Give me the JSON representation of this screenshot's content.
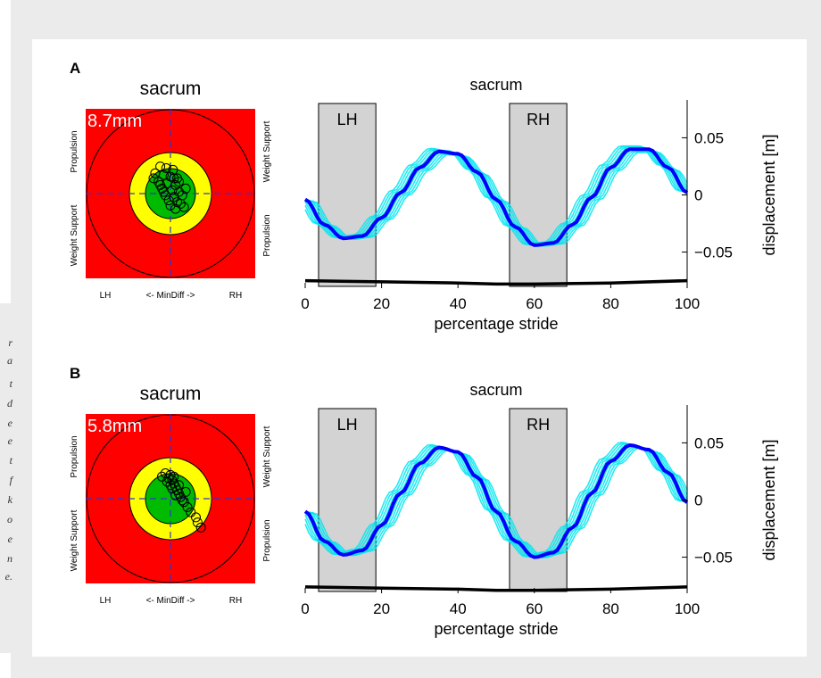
{
  "caption_fragments": [
    {
      "id": "r",
      "text": "r"
    },
    {
      "id": "a",
      "text": "a"
    },
    {
      "id": "t",
      "text": "t"
    },
    {
      "id": "d",
      "text": "d"
    },
    {
      "id": "e1",
      "text": "e"
    },
    {
      "id": "e2",
      "text": "e"
    },
    {
      "id": "t2",
      "text": "t"
    },
    {
      "id": "f",
      "text": "f"
    },
    {
      "id": "k",
      "text": "k"
    },
    {
      "id": "o",
      "text": "o"
    },
    {
      "id": "e3",
      "text": "e"
    },
    {
      "id": "n",
      "text": "n"
    },
    {
      "id": "e4",
      "text": "e."
    }
  ],
  "colors": {
    "target_outer": "#ff0000",
    "target_middle": "#ffff00",
    "target_inner": "#00bb00",
    "trial_line": "#00e5ee",
    "mean_line": "#0000ff",
    "phase_box": "#d3d3d3",
    "overlay_text": "#ffffff"
  },
  "chart_data": [
    {
      "panel": "A",
      "type": "scatter",
      "title": "sacrum",
      "value_label": "8.7mm",
      "xlabel": "<- MinDiff ->",
      "x_tick_labels": [
        "LH",
        "RH"
      ],
      "left_labels": [
        "Propulsion",
        "Weight Support"
      ],
      "right_labels": [
        "Weight Support",
        "Propulsion"
      ],
      "points": [
        [
          -0.12,
          0.32
        ],
        [
          -0.05,
          0.3
        ],
        [
          0.03,
          0.28
        ],
        [
          -0.18,
          0.24
        ],
        [
          -0.08,
          0.22
        ],
        [
          0.0,
          0.2
        ],
        [
          0.08,
          0.18
        ],
        [
          -0.14,
          0.14
        ],
        [
          -0.04,
          0.12
        ],
        [
          0.06,
          0.1
        ],
        [
          -0.1,
          0.06
        ],
        [
          0.02,
          0.04
        ],
        [
          0.1,
          0.02
        ],
        [
          -0.06,
          -0.02
        ],
        [
          0.04,
          -0.04
        ],
        [
          0.14,
          -0.02
        ],
        [
          -0.02,
          -0.08
        ],
        [
          0.08,
          -0.1
        ],
        [
          0.0,
          -0.14
        ],
        [
          0.12,
          -0.12
        ],
        [
          -0.08,
          0.02
        ],
        [
          0.04,
          0.18
        ],
        [
          -0.12,
          0.1
        ],
        [
          0.1,
          0.14
        ],
        [
          0.18,
          0.06
        ],
        [
          -0.2,
          0.18
        ],
        [
          0.06,
          -0.18
        ],
        [
          0.16,
          -0.16
        ]
      ]
    },
    {
      "panel": "A",
      "type": "line",
      "title": "sacrum",
      "xlabel": "percentage stride",
      "ylabel": "displacement [m]",
      "x_ticks": [
        0,
        20,
        40,
        60,
        80,
        100
      ],
      "y_ticks": [
        -0.05,
        0,
        0.05
      ],
      "xlim": [
        0,
        100
      ],
      "ylim": [
        -0.08,
        0.08
      ],
      "phase_boxes": [
        {
          "label": "LH",
          "start": 3.5,
          "end": 18.5
        },
        {
          "label": "RH",
          "start": 53.5,
          "end": 68.5
        }
      ],
      "mean_series": {
        "x": [
          0,
          5,
          10,
          15,
          20,
          25,
          30,
          35,
          40,
          45,
          50,
          55,
          60,
          65,
          70,
          75,
          80,
          85,
          90,
          95,
          100
        ],
        "y": [
          -0.004,
          -0.026,
          -0.038,
          -0.036,
          -0.02,
          0.002,
          0.024,
          0.038,
          0.036,
          0.02,
          -0.004,
          -0.028,
          -0.044,
          -0.042,
          -0.026,
          -0.002,
          0.024,
          0.04,
          0.04,
          0.024,
          0.002
        ]
      },
      "trial_band": 0.006,
      "bottom_trace": {
        "x": [
          0,
          20,
          40,
          50,
          60,
          80,
          100
        ],
        "y": [
          -0.075,
          -0.076,
          -0.077,
          -0.078,
          -0.078,
          -0.077,
          -0.075
        ]
      }
    },
    {
      "panel": "B",
      "type": "scatter",
      "title": "sacrum",
      "value_label": "5.8mm",
      "xlabel": "<- MinDiff ->",
      "x_tick_labels": [
        "LH",
        "RH"
      ],
      "left_labels": [
        "Propulsion",
        "Weight Support"
      ],
      "right_labels": [
        "Weight Support",
        "Propulsion"
      ],
      "points": [
        [
          -0.06,
          0.3
        ],
        [
          0.0,
          0.28
        ],
        [
          -0.02,
          0.24
        ],
        [
          0.02,
          0.22
        ],
        [
          0.04,
          0.18
        ],
        [
          -0.04,
          0.2
        ],
        [
          0.06,
          0.14
        ],
        [
          0.02,
          0.12
        ],
        [
          0.08,
          0.1
        ],
        [
          0.1,
          0.06
        ],
        [
          0.06,
          0.04
        ],
        [
          0.12,
          0.02
        ],
        [
          0.14,
          -0.02
        ],
        [
          0.16,
          -0.04
        ],
        [
          0.2,
          -0.1
        ],
        [
          0.24,
          -0.16
        ],
        [
          0.3,
          -0.22
        ],
        [
          0.32,
          -0.28
        ],
        [
          0.36,
          -0.34
        ],
        [
          -0.1,
          0.26
        ],
        [
          0.0,
          0.16
        ],
        [
          0.1,
          0.16
        ],
        [
          0.18,
          0.08
        ],
        [
          0.04,
          0.26
        ]
      ]
    },
    {
      "panel": "B",
      "type": "line",
      "title": "sacrum",
      "xlabel": "percentage stride",
      "ylabel": "displacement [m]",
      "x_ticks": [
        0,
        20,
        40,
        60,
        80,
        100
      ],
      "y_ticks": [
        -0.05,
        0,
        0.05
      ],
      "xlim": [
        0,
        100
      ],
      "ylim": [
        -0.08,
        0.08
      ],
      "phase_boxes": [
        {
          "label": "LH",
          "start": 3.5,
          "end": 18.5
        },
        {
          "label": "RH",
          "start": 53.5,
          "end": 68.5
        }
      ],
      "mean_series": {
        "x": [
          0,
          5,
          10,
          15,
          20,
          25,
          30,
          35,
          40,
          45,
          50,
          55,
          60,
          65,
          70,
          75,
          80,
          85,
          90,
          95,
          100
        ],
        "y": [
          -0.01,
          -0.036,
          -0.048,
          -0.044,
          -0.022,
          0.006,
          0.032,
          0.046,
          0.042,
          0.02,
          -0.01,
          -0.036,
          -0.05,
          -0.046,
          -0.024,
          0.006,
          0.034,
          0.048,
          0.044,
          0.024,
          -0.002
        ]
      },
      "trial_band": 0.005,
      "bottom_trace": {
        "x": [
          0,
          20,
          40,
          50,
          60,
          80,
          100
        ],
        "y": [
          -0.076,
          -0.077,
          -0.078,
          -0.079,
          -0.079,
          -0.078,
          -0.076
        ]
      }
    }
  ],
  "panels": [
    {
      "letter": "A"
    },
    {
      "letter": "B"
    }
  ]
}
